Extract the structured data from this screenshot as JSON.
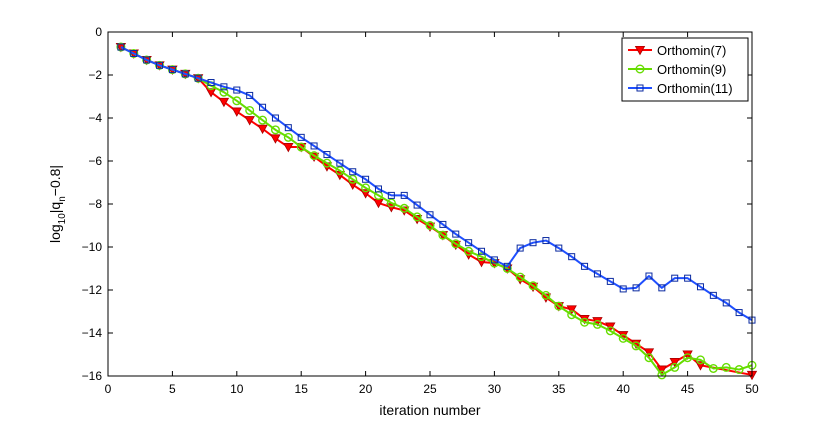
{
  "chart_data": {
    "type": "line",
    "xlabel": "iteration number",
    "ylabel_base": "log",
    "ylabel_base_sub": "10",
    "ylabel_mid": "|q",
    "ylabel_mid_sub": "n",
    "ylabel_tail": "−0.8|",
    "xlim": [
      0,
      50
    ],
    "ylim": [
      -16,
      0
    ],
    "xticks": [
      0,
      5,
      10,
      15,
      20,
      25,
      30,
      35,
      40,
      45,
      50
    ],
    "yticks": [
      0,
      -2,
      -4,
      -6,
      -8,
      -10,
      -12,
      -14,
      -16
    ],
    "xtick_labels": [
      "0",
      "5",
      "10",
      "15",
      "20",
      "25",
      "30",
      "35",
      "40",
      "45",
      "50"
    ],
    "ytick_labels": [
      "0",
      "−2",
      "−4",
      "−6",
      "−8",
      "−10",
      "−12",
      "−14",
      "−16"
    ],
    "legend_position": "top-right",
    "x": [
      1,
      2,
      3,
      4,
      5,
      6,
      7,
      8,
      9,
      10,
      11,
      12,
      13,
      14,
      15,
      16,
      17,
      18,
      19,
      20,
      21,
      22,
      23,
      24,
      25,
      26,
      27,
      28,
      29,
      30,
      31,
      32,
      33,
      34,
      35,
      36,
      37,
      38,
      39,
      40,
      41,
      42,
      43,
      44,
      45,
      46,
      47,
      48,
      49,
      50
    ],
    "series": [
      {
        "name": "Orthomin(7)",
        "color": "#ff0000",
        "marker": "triangle-down",
        "values": [
          -0.7,
          -1.0,
          -1.3,
          -1.55,
          -1.75,
          -1.95,
          -2.15,
          -2.8,
          -3.25,
          -3.7,
          -4.1,
          -4.5,
          -4.95,
          -5.35,
          -5.35,
          -5.8,
          -6.25,
          -6.65,
          -7.1,
          -7.5,
          -7.95,
          -8.15,
          -8.3,
          -8.7,
          -9.05,
          -9.45,
          -9.9,
          -10.35,
          -10.7,
          -10.75,
          -11.0,
          -11.5,
          -11.85,
          -12.35,
          -12.75,
          -12.9,
          -13.35,
          -13.45,
          -13.7,
          -14.1,
          -14.5,
          -14.9,
          -15.7,
          -15.35,
          -15.0,
          -15.5,
          null,
          null,
          null,
          -15.95
        ]
      },
      {
        "name": "Orthomin(9)",
        "color": "#66dd00",
        "marker": "circle",
        "values": [
          -0.7,
          -1.0,
          -1.3,
          -1.55,
          -1.75,
          -1.95,
          -2.15,
          -2.5,
          -2.8,
          -3.2,
          -3.65,
          -4.1,
          -4.55,
          -4.9,
          -5.35,
          -5.75,
          -6.1,
          -6.45,
          -6.85,
          -7.25,
          -7.6,
          -7.95,
          -8.2,
          -8.6,
          -9.0,
          -9.45,
          -9.85,
          -10.2,
          -10.45,
          -10.75,
          -11.0,
          -11.4,
          -11.8,
          -12.25,
          -12.75,
          -13.15,
          -13.5,
          -13.6,
          -13.9,
          -14.25,
          -14.6,
          -15.15,
          -15.95,
          -15.6,
          -15.15,
          -15.25,
          -15.65,
          -15.6,
          -15.7,
          -15.5
        ]
      },
      {
        "name": "Orthomin(11)",
        "color": "#1f4fff",
        "marker": "square",
        "values": [
          -0.7,
          -1.0,
          -1.3,
          -1.55,
          -1.75,
          -1.95,
          -2.15,
          -2.35,
          -2.55,
          -2.7,
          -2.95,
          -3.5,
          -4.0,
          -4.45,
          -4.9,
          -5.3,
          -5.7,
          -6.1,
          -6.5,
          -6.85,
          -7.3,
          -7.6,
          -7.6,
          -8.05,
          -8.5,
          -8.95,
          -9.4,
          -9.8,
          -10.2,
          -10.6,
          -10.9,
          -10.05,
          -9.8,
          -9.7,
          -10.05,
          -10.45,
          -10.9,
          -11.25,
          -11.6,
          -11.95,
          -11.9,
          -11.35,
          -11.9,
          -11.45,
          -11.45,
          -11.85,
          -12.25,
          -12.6,
          -13.05,
          -13.4
        ]
      }
    ]
  }
}
